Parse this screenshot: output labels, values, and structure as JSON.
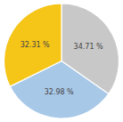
{
  "chart_data": {
    "type": "pie",
    "values": [
      34.71,
      32.98,
      32.31
    ],
    "value_labels": [
      "34.71 %",
      "32.98 %",
      "32.31 %"
    ],
    "colors": [
      "#c8c8c8",
      "#a8c8e8",
      "#f5c518"
    ],
    "data_labels": true
  }
}
